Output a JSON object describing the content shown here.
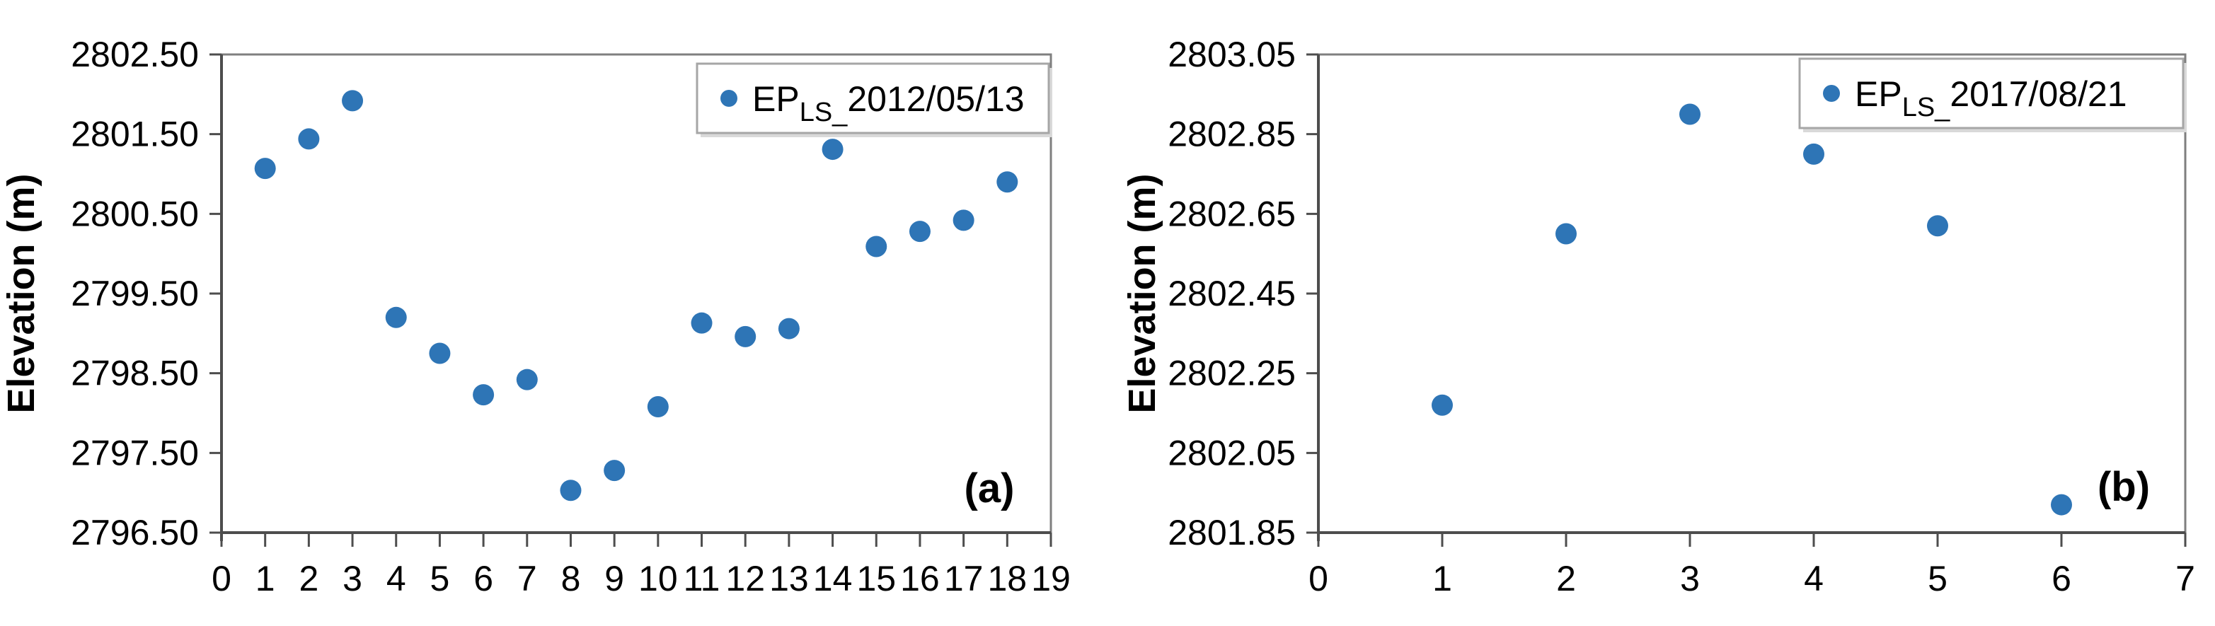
{
  "figure": {
    "background": "#ffffff",
    "point_color": "#2E75B6",
    "axis_color": "#4d4d4d",
    "box_color": "#7f7f7f",
    "legend_border_color": "#a6a6a6",
    "legend_shadow_color": "#d9d9d9",
    "text_color": "#000000"
  },
  "chart_data": [
    {
      "type": "scatter",
      "panel_label": "(a)",
      "ylabel": "Elevation (m)",
      "xlabel": "",
      "legend": {
        "main": "EP",
        "sub": "LS_",
        "date": "2012/05/13",
        "position": "top-right"
      },
      "x": [
        1,
        2,
        3,
        4,
        5,
        6,
        7,
        8,
        9,
        10,
        11,
        12,
        13,
        14,
        15,
        16,
        17,
        18
      ],
      "y": [
        2801.07,
        2801.44,
        2801.92,
        2799.2,
        2798.75,
        2798.23,
        2798.42,
        2797.03,
        2797.28,
        2798.08,
        2799.13,
        2798.96,
        2799.06,
        2801.31,
        2800.09,
        2800.28,
        2800.42,
        2800.9
      ],
      "xlim": [
        0,
        19
      ],
      "ylim": [
        2796.5,
        2802.5
      ],
      "xticks": [
        0,
        1,
        2,
        3,
        4,
        5,
        6,
        7,
        8,
        9,
        10,
        11,
        12,
        13,
        14,
        15,
        16,
        17,
        18,
        19
      ],
      "yticks": [
        "2802.50",
        "2801.50",
        "2800.50",
        "2799.50",
        "2798.50",
        "2797.50",
        "2796.50"
      ],
      "grid": false,
      "legend_position": "top-right"
    },
    {
      "type": "scatter",
      "panel_label": "(b)",
      "ylabel": "Elevation (m)",
      "xlabel": "",
      "legend": {
        "main": "EP",
        "sub": "LS_",
        "date": "2017/08/21",
        "position": "top-right"
      },
      "x": [
        1,
        2,
        3,
        4,
        5,
        6
      ],
      "y": [
        2802.17,
        2802.6,
        2802.9,
        2802.8,
        2802.62,
        2801.92
      ],
      "xlim": [
        0,
        7
      ],
      "ylim": [
        2801.85,
        2803.05
      ],
      "xticks": [
        0,
        1,
        2,
        3,
        4,
        5,
        6,
        7
      ],
      "yticks": [
        "2803.05",
        "2802.85",
        "2802.65",
        "2802.45",
        "2802.25",
        "2802.05",
        "2801.85"
      ],
      "grid": false,
      "legend_position": "top-right"
    }
  ]
}
